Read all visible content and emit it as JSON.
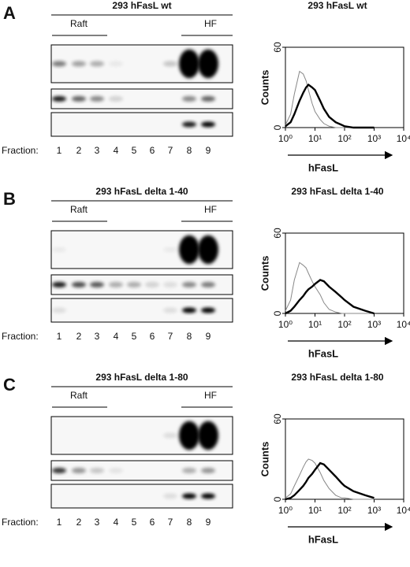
{
  "panels": [
    {
      "letter": "A",
      "title": "293 hFasL wt",
      "raft": "Raft",
      "hf": "HF",
      "fraction_label": "Fraction:",
      "fractions": [
        1,
        2,
        3,
        4,
        5,
        6,
        7,
        8,
        9
      ],
      "histogram": {
        "type": "line",
        "title": "293 hFasL wt",
        "ylabel": "Counts",
        "xlabel": "hFasL",
        "log_x": true,
        "xlim": [
          1,
          10000
        ],
        "ylim": [
          0,
          60
        ],
        "yticks": [
          0,
          60
        ],
        "xticks": [
          {
            "value": 1,
            "label": "10⁰"
          },
          {
            "value": 10,
            "label": "10¹"
          },
          {
            "value": 100,
            "label": "10²"
          },
          {
            "value": 1000,
            "label": "10³"
          },
          {
            "value": 10000,
            "label": "10⁴"
          }
        ],
        "x": [
          1,
          1.5,
          2,
          3,
          4,
          5,
          6,
          8,
          10,
          15,
          20,
          30,
          50,
          80,
          100,
          200,
          500,
          1000
        ],
        "series": [
          {
            "color": "#888888",
            "values": [
              2,
              10,
              25,
              42,
              40,
              35,
              28,
              18,
              12,
              6,
              3,
              1,
              0,
              0,
              0,
              0,
              0,
              0
            ]
          },
          {
            "color": "#000000",
            "values": [
              1,
              4,
              10,
              20,
              26,
              30,
              32,
              30,
              28,
              20,
              14,
              8,
              4,
              2,
              1,
              0,
              0,
              0
            ]
          }
        ]
      }
    },
    {
      "letter": "B",
      "title": "293 hFasL delta 1-40",
      "raft": "Raft",
      "hf": "HF",
      "fraction_label": "Fraction:",
      "fractions": [
        1,
        2,
        3,
        4,
        5,
        6,
        7,
        8,
        9
      ],
      "histogram": {
        "type": "line",
        "title": "293 hFasL delta 1-40",
        "ylabel": "Counts",
        "xlabel": "hFasL",
        "log_x": true,
        "xlim": [
          1,
          10000
        ],
        "ylim": [
          0,
          60
        ],
        "yticks": [
          0,
          60
        ],
        "xticks": [
          {
            "value": 1,
            "label": "10⁰"
          },
          {
            "value": 10,
            "label": "10¹"
          },
          {
            "value": 100,
            "label": "10²"
          },
          {
            "value": 1000,
            "label": "10³"
          },
          {
            "value": 10000,
            "label": "10⁴"
          }
        ],
        "x": [
          1,
          1.5,
          2,
          3,
          4,
          5,
          6,
          8,
          10,
          15,
          20,
          30,
          50,
          80,
          100,
          200,
          500,
          1000
        ],
        "series": [
          {
            "color": "#888888",
            "values": [
              2,
              10,
              25,
              38,
              36,
              34,
              30,
              24,
              20,
              14,
              8,
              3,
              1,
              0,
              0,
              0,
              0,
              0
            ]
          },
          {
            "color": "#000000",
            "values": [
              0,
              2,
              5,
              10,
              13,
              16,
              18,
              20,
              22,
              25,
              24,
              20,
              16,
              12,
              10,
              5,
              2,
              0
            ]
          }
        ]
      }
    },
    {
      "letter": "C",
      "title": "293 hFasL delta 1-80",
      "raft": "Raft",
      "hf": "HF",
      "fraction_label": "Fraction:",
      "fractions": [
        1,
        2,
        3,
        4,
        5,
        6,
        7,
        8,
        9
      ],
      "histogram": {
        "type": "line",
        "title": "293 hFasL delta 1-80",
        "ylabel": "Counts",
        "xlabel": "hFasL",
        "log_x": true,
        "xlim": [
          1,
          10000
        ],
        "ylim": [
          0,
          60
        ],
        "yticks": [
          0,
          60
        ],
        "xticks": [
          {
            "value": 1,
            "label": "10⁰"
          },
          {
            "value": 10,
            "label": "10¹"
          },
          {
            "value": 100,
            "label": "10²"
          },
          {
            "value": 1000,
            "label": "10³"
          },
          {
            "value": 10000,
            "label": "10⁴"
          }
        ],
        "x": [
          1,
          1.5,
          2,
          3,
          4,
          5,
          6,
          8,
          10,
          15,
          20,
          30,
          50,
          80,
          100,
          200,
          500,
          1000
        ],
        "series": [
          {
            "color": "#888888",
            "values": [
              1,
              4,
              10,
              18,
              24,
              28,
              30,
              29,
              27,
              20,
              14,
              8,
              3,
              1,
              1,
              0,
              0,
              0
            ]
          },
          {
            "color": "#000000",
            "values": [
              0,
              1,
              3,
              7,
              10,
              13,
              16,
              19,
              22,
              27,
              26,
              22,
              17,
              12,
              10,
              6,
              3,
              1
            ]
          }
        ]
      }
    }
  ]
}
